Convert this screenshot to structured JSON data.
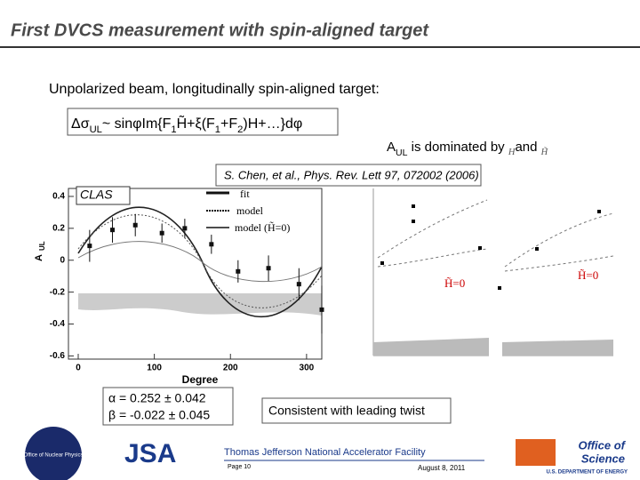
{
  "title": "First DVCS measurement with spin-aligned target",
  "subtitle": "Unpolarized beam, longitudinally spin-aligned target:",
  "formula": [
    "Δσ",
    "UL",
    "~ sinφIm{F",
    "1",
    "H̃+ξ(F",
    "1",
    "+F",
    "2",
    ")H+…}dφ"
  ],
  "note": [
    "A",
    "UL",
    " is dominated by ",
    "H",
    "and ",
    "H̃"
  ],
  "reference": "S. Chen, et al., Phys. Rev. Lett 97, 072002 (2006)",
  "plot": {
    "label": "CLAS",
    "legend": [
      "fit",
      "model",
      "model (H̃=0)"
    ],
    "xlabel": "Degree",
    "ylabel": "A",
    "ylabel_sub": "UL",
    "xlim": [
      0,
      320
    ],
    "ylim": [
      -0.62,
      0.45
    ],
    "xticks": [
      0,
      100,
      200,
      300
    ],
    "yticks": [
      0.4,
      0.2,
      0,
      -0.2,
      -0.4,
      -0.6
    ],
    "x": [
      15,
      45,
      75,
      110,
      140,
      175,
      210,
      250,
      290,
      320
    ],
    "values": [
      0.09,
      0.19,
      0.22,
      0.17,
      0.2,
      0.1,
      -0.07,
      -0.05,
      -0.15,
      -0.31
    ],
    "errors": [
      0.1,
      0.08,
      0.07,
      0.06,
      0.06,
      0.06,
      0.07,
      0.08,
      0.1,
      0.15
    ]
  },
  "right_plot": {
    "labels": [
      "H̃=0",
      "H̃=0"
    ]
  },
  "fit_params": [
    "α =  0.252 ± 0.042",
    "β = -0.022 ± 0.045"
  ],
  "conclusion": "Consistent with leading twist",
  "footer": {
    "lab": "Thomas Jefferson National Accelerator Facility",
    "page": "Page 10",
    "date": "August 8, 2011",
    "jsa": "JSA",
    "office": [
      "Office of",
      "Science"
    ],
    "doe": "U.S. DEPARTMENT OF ENERGY",
    "onp": "Office of Nuclear Physics"
  }
}
